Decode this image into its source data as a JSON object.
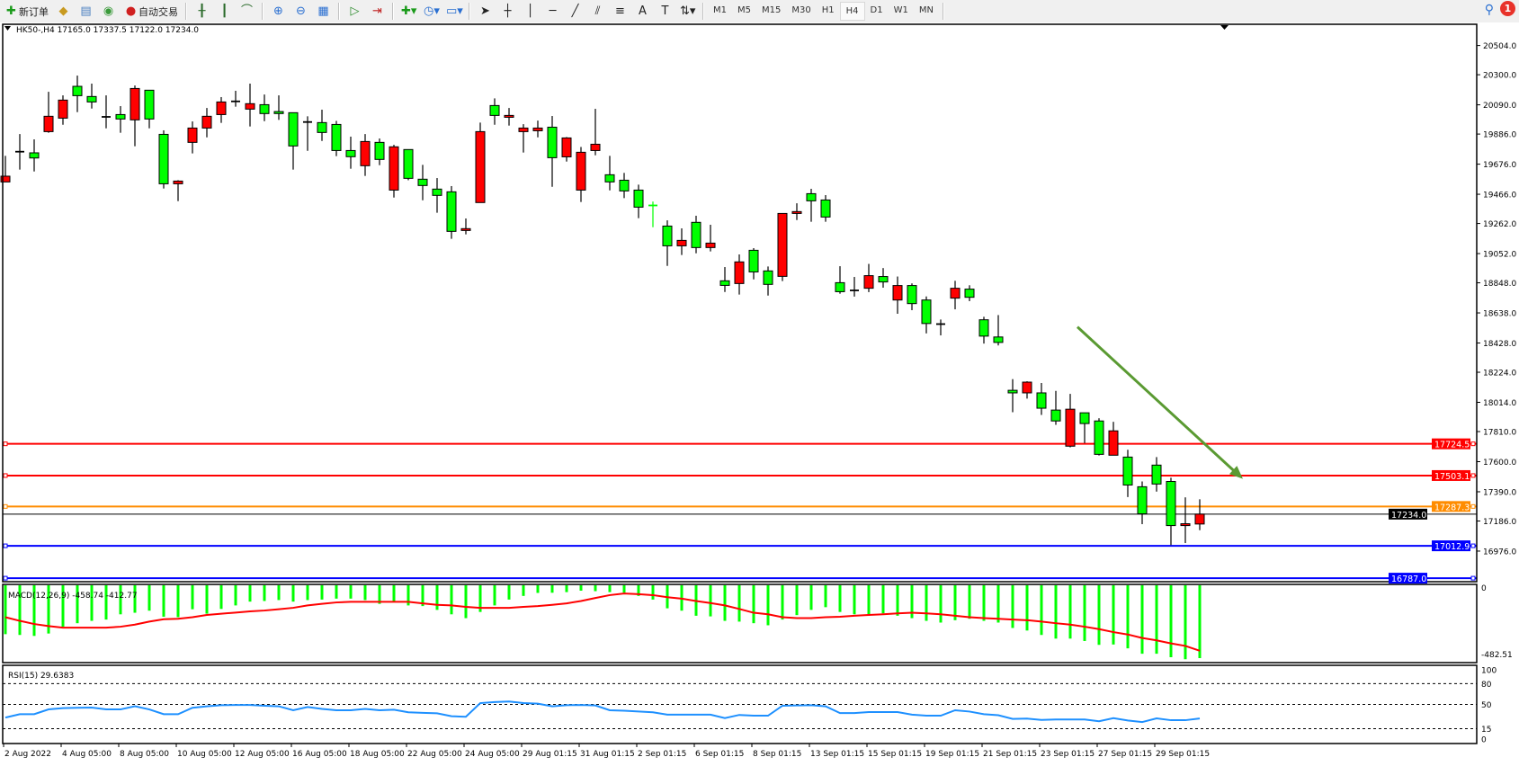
{
  "toolbar": {
    "new_order_label": "新订单",
    "auto_trade_label": "自动交易",
    "timeframes": [
      "M1",
      "M5",
      "M15",
      "M30",
      "H1",
      "H4",
      "D1",
      "W1",
      "MN"
    ],
    "active_timeframe": "H4",
    "notification_count": "1"
  },
  "chart": {
    "header": "HK50-,H4  17165.0 17337.5 17122.0 17234.0",
    "symbol": "HK50-",
    "timeframe": "H4",
    "ohlc_current": {
      "open": 17165.0,
      "high": 17337.5,
      "low": 17122.0,
      "close": 17234.0
    },
    "colors": {
      "up": "#ff0000",
      "down": "#00ff00",
      "outline": "#000000",
      "macd_hist": "#00ff00",
      "macd_signal": "#ff0000",
      "rsi": "#1e90ff",
      "arrow": "#5a9a32"
    },
    "price_axis_labels": [
      "20504.0",
      "20300.0",
      "20090.0",
      "19886.0",
      "19676.0",
      "19466.0",
      "19262.0",
      "19052.0",
      "18848.0",
      "18638.0",
      "18428.0",
      "18224.0",
      "18014.0",
      "17810.0",
      "17600.0",
      "17390.0",
      "17186.0",
      "16976.0"
    ],
    "horizontal_lines": [
      {
        "price": 17724.5,
        "label": "17724.5",
        "color": "#ff0000"
      },
      {
        "price": 17503.1,
        "label": "17503.1",
        "color": "#ff0000"
      },
      {
        "price": 17287.3,
        "label": "17287.3",
        "color": "#ff8c00"
      },
      {
        "price": 17234.0,
        "label": "17234.0",
        "color": "#000000"
      },
      {
        "price": 17012.9,
        "label": "17012.9",
        "color": "#0000ff"
      },
      {
        "price": 16787.0,
        "label": "16787.0",
        "color": "#0000ff"
      }
    ],
    "time_labels": [
      "2 Aug 2022",
      "4 Aug 05:00",
      "8 Aug 05:00",
      "10 Aug 05:00",
      "12 Aug 05:00",
      "16 Aug 05:00",
      "18 Aug 05:00",
      "22 Aug 05:00",
      "24 Aug 05:00",
      "29 Aug 01:15",
      "31 Aug 01:15",
      "2 Sep 01:15",
      "6 Sep 01:15",
      "8 Sep 01:15",
      "13 Sep 01:15",
      "15 Sep 01:15",
      "19 Sep 01:15",
      "21 Sep 01:15",
      "23 Sep 01:15",
      "27 Sep 01:15",
      "29 Sep 01:15"
    ]
  },
  "macd": {
    "label": "MACD(12,26,9) -458.74 -412.77",
    "axis_labels": [
      "0",
      "-482.51"
    ],
    "hist": [
      -308,
      -313,
      -319,
      -304,
      -261,
      -239,
      -224,
      -216,
      -183,
      -173,
      -160,
      -198,
      -201,
      -151,
      -179,
      -149,
      -127,
      -103,
      -99,
      -93,
      -103,
      -93,
      -90,
      -84,
      -84,
      -93,
      -117,
      -104,
      -127,
      -131,
      -155,
      -183,
      -207,
      -168,
      -127,
      -90,
      -67,
      -48,
      -47,
      -43,
      -34,
      -37,
      -43,
      -47,
      -67,
      -90,
      -145,
      -160,
      -192,
      -196,
      -224,
      -229,
      -239,
      -252,
      -216,
      -188,
      -155,
      -138,
      -168,
      -183,
      -183,
      -177,
      -192,
      -207,
      -224,
      -235,
      -220,
      -211,
      -224,
      -235,
      -269,
      -285,
      -313,
      -336,
      -336,
      -351,
      -375,
      -373,
      -397,
      -431,
      -431,
      -453,
      -466,
      -458.74
    ],
    "signal": [
      -201,
      -224,
      -244,
      -257,
      -267,
      -267,
      -267,
      -267,
      -261,
      -248,
      -229,
      -214,
      -211,
      -201,
      -187,
      -179,
      -172,
      -164,
      -159,
      -151,
      -142,
      -127,
      -117,
      -108,
      -104,
      -104,
      -104,
      -104,
      -104,
      -114,
      -123,
      -127,
      -136,
      -142,
      -142,
      -142,
      -136,
      -131,
      -123,
      -114,
      -99,
      -80,
      -62,
      -52,
      -56,
      -62,
      -75,
      -84,
      -99,
      -112,
      -127,
      -149,
      -173,
      -183,
      -201,
      -207,
      -207,
      -201,
      -198,
      -192,
      -187,
      -183,
      -177,
      -173,
      -177,
      -183,
      -192,
      -201,
      -207,
      -211,
      -216,
      -220,
      -229,
      -239,
      -248,
      -261,
      -276,
      -295,
      -310,
      -332,
      -347,
      -366,
      -382,
      -412.77
    ]
  },
  "rsi": {
    "label": "RSI(15) 29.6383",
    "axis_labels": [
      "100",
      "80",
      "50",
      "15",
      "0"
    ],
    "levels": [
      80,
      50,
      15
    ],
    "values": [
      31.0,
      35.9,
      35.9,
      42.8,
      44.7,
      45.1,
      45.4,
      42.8,
      42.8,
      47.3,
      42.8,
      35.9,
      35.9,
      45.1,
      47.3,
      48.9,
      49.2,
      49.2,
      48.1,
      47.3,
      41.6,
      46.2,
      43.5,
      41.6,
      41.6,
      43.5,
      41.6,
      42.4,
      38.6,
      37.8,
      37.1,
      32.9,
      32.1,
      51.9,
      53.4,
      54.2,
      51.9,
      51.1,
      47.3,
      48.9,
      49.2,
      48.5,
      41.6,
      40.9,
      39.7,
      38.6,
      35.2,
      35.2,
      35.2,
      35.2,
      30.2,
      34.8,
      33.7,
      33.7,
      48.1,
      48.5,
      48.9,
      47.3,
      37.5,
      37.5,
      39.0,
      39.0,
      39.0,
      35.2,
      33.7,
      33.7,
      41.6,
      39.7,
      35.9,
      34.4,
      29.1,
      29.5,
      27.6,
      28.3,
      28.3,
      28.3,
      25.7,
      30.2,
      26.8,
      24.5,
      29.9,
      27.2,
      27.2,
      29.6383
    ]
  },
  "chart_data": {
    "type": "candlestick",
    "columns": [
      "open",
      "high",
      "low",
      "close"
    ],
    "candles": [
      [
        19552,
        19734,
        19552,
        19592
      ],
      [
        19763,
        19886,
        19638,
        19763
      ],
      [
        19755,
        19849,
        19625,
        19719
      ],
      [
        19903,
        20181,
        19895,
        20010
      ],
      [
        19997,
        20156,
        19951,
        20123
      ],
      [
        20219,
        20294,
        20039,
        20154
      ],
      [
        20148,
        20238,
        20064,
        20110
      ],
      [
        20006,
        20156,
        19926,
        20006
      ],
      [
        20022,
        20081,
        19895,
        19991
      ],
      [
        19985,
        20225,
        19801,
        20204
      ],
      [
        20192,
        20192,
        19926,
        19991
      ],
      [
        19884,
        19912,
        19506,
        19539
      ],
      [
        19539,
        19564,
        19418,
        19558
      ],
      [
        19828,
        19974,
        19751,
        19928
      ],
      [
        19928,
        20068,
        19863,
        20010
      ],
      [
        20022,
        20144,
        19964,
        20110
      ],
      [
        20114,
        20188,
        20077,
        20114
      ],
      [
        20060,
        20238,
        19939,
        20098
      ],
      [
        20091,
        20162,
        19976,
        20029
      ],
      [
        20043,
        20156,
        19985,
        20029
      ],
      [
        20035,
        20035,
        19638,
        19803
      ],
      [
        19970,
        20010,
        19769,
        19970
      ],
      [
        19966,
        20056,
        19838,
        19897
      ],
      [
        19953,
        19978,
        19732,
        19771
      ],
      [
        19771,
        19868,
        19644,
        19728
      ],
      [
        19665,
        19886,
        19594,
        19834
      ],
      [
        19828,
        19855,
        19669,
        19709
      ],
      [
        19495,
        19811,
        19443,
        19797
      ],
      [
        19778,
        19778,
        19564,
        19577
      ],
      [
        19571,
        19671,
        19424,
        19527
      ],
      [
        19502,
        19579,
        19337,
        19458
      ],
      [
        19483,
        19523,
        19155,
        19207
      ],
      [
        19213,
        19297,
        19186,
        19226
      ],
      [
        19408,
        19966,
        19408,
        19903
      ],
      [
        20085,
        20135,
        19951,
        20016
      ],
      [
        20003,
        20068,
        19945,
        20016
      ],
      [
        19903,
        19955,
        19757,
        19928
      ],
      [
        19909,
        19980,
        19863,
        19928
      ],
      [
        19934,
        20012,
        19518,
        19721
      ],
      [
        19727,
        19865,
        19694,
        19859
      ],
      [
        19495,
        19796,
        19412,
        19759
      ],
      [
        19771,
        20062,
        19738,
        19815
      ],
      [
        19602,
        19734,
        19493,
        19552
      ],
      [
        19564,
        19615,
        19439,
        19489
      ],
      [
        19495,
        19533,
        19299,
        19376
      ],
      [
        19388,
        19415,
        19236,
        19385
      ],
      [
        19244,
        19284,
        18966,
        19106
      ],
      [
        19106,
        19228,
        19042,
        19144
      ],
      [
        19270,
        19316,
        19054,
        19094
      ],
      [
        19094,
        19253,
        19067,
        19125
      ],
      [
        18862,
        18958,
        18784,
        18830
      ],
      [
        18843,
        19046,
        18766,
        18994
      ],
      [
        19075,
        19090,
        18872,
        18924
      ],
      [
        18931,
        18962,
        18759,
        18837
      ],
      [
        18893,
        19332,
        18860,
        19332
      ],
      [
        19332,
        19403,
        19286,
        19345
      ],
      [
        19470,
        19504,
        19274,
        19420
      ],
      [
        19426,
        19460,
        19274,
        19307
      ],
      [
        18849,
        18964,
        18772,
        18786
      ],
      [
        18795,
        18889,
        18752,
        18795
      ],
      [
        18810,
        18980,
        18783,
        18898
      ],
      [
        18892,
        18951,
        18814,
        18854
      ],
      [
        18728,
        18892,
        18632,
        18829
      ],
      [
        18829,
        18844,
        18657,
        18703
      ],
      [
        18728,
        18753,
        18495,
        18564
      ],
      [
        18560,
        18592,
        18481,
        18560
      ],
      [
        18741,
        18862,
        18663,
        18810
      ],
      [
        18804,
        18831,
        18720,
        18747
      ],
      [
        18590,
        18611,
        18424,
        18476
      ],
      [
        18470,
        18623,
        18411,
        18432
      ],
      [
        18098,
        18176,
        17945,
        18080
      ],
      [
        18080,
        18161,
        18040,
        18155
      ],
      [
        18080,
        18149,
        17926,
        17973
      ],
      [
        17960,
        18094,
        17857,
        17884
      ],
      [
        17708,
        18073,
        17700,
        17966
      ],
      [
        17941,
        17941,
        17729,
        17866
      ],
      [
        17884,
        17903,
        17643,
        17651
      ],
      [
        17645,
        17878,
        17645,
        17815
      ],
      [
        17632,
        17683,
        17353,
        17437
      ],
      [
        17425,
        17462,
        17164,
        17236
      ],
      [
        17576,
        17632,
        17391,
        17444
      ],
      [
        17462,
        17488,
        17018,
        17154
      ],
      [
        17154,
        17351,
        17032,
        17167
      ],
      [
        17165,
        17337.5,
        17122,
        17234
      ]
    ],
    "ylim": [
      16772,
      20504
    ],
    "y_tick_labels": [
      "20504.0",
      "20300.0",
      "20090.0",
      "19886.0",
      "19676.0",
      "19466.0",
      "19262.0",
      "19052.0",
      "18848.0",
      "18638.0",
      "18428.0",
      "18224.0",
      "18014.0",
      "17810.0",
      "17600.0",
      "17390.0",
      "17186.0",
      "16976.0"
    ],
    "annotation_arrow": {
      "from_price": 18540,
      "to_price": 17480,
      "direction": "down-right"
    },
    "grid": false
  }
}
